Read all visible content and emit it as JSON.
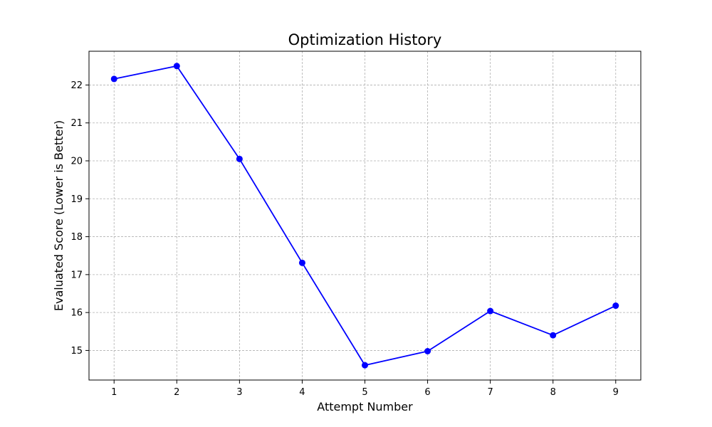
{
  "chart_data": {
    "type": "line",
    "title": "Optimization History",
    "xlabel": "Attempt Number",
    "ylabel": "Evaluated Score (Lower is Better)",
    "x": [
      1,
      2,
      3,
      4,
      5,
      6,
      7,
      8,
      9
    ],
    "series": [
      {
        "name": "Evaluated Score",
        "values": [
          22.16,
          22.5,
          20.05,
          17.31,
          14.61,
          14.98,
          16.04,
          15.4,
          16.18
        ],
        "color": "#0000ff",
        "marker": "circle"
      }
    ],
    "xticks": [
      1,
      2,
      3,
      4,
      5,
      6,
      7,
      8,
      9
    ],
    "yticks": [
      15,
      16,
      17,
      18,
      19,
      20,
      21,
      22
    ],
    "xlim": [
      0.6,
      9.4
    ],
    "ylim": [
      14.22,
      22.89
    ],
    "grid": true,
    "grid_color": "#b0b0b0"
  }
}
